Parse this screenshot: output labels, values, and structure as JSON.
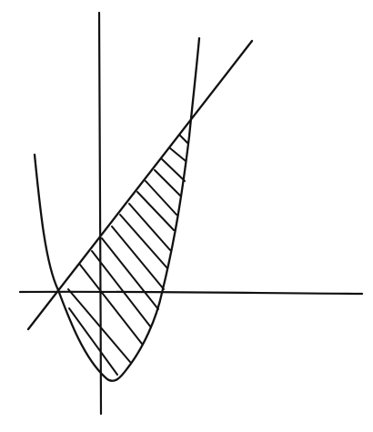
{
  "sketch": {
    "ink_color": "#111111",
    "background_color": "#ffffff",
    "shaded_region": {
      "style": "diagonal-hatching"
    }
  }
}
